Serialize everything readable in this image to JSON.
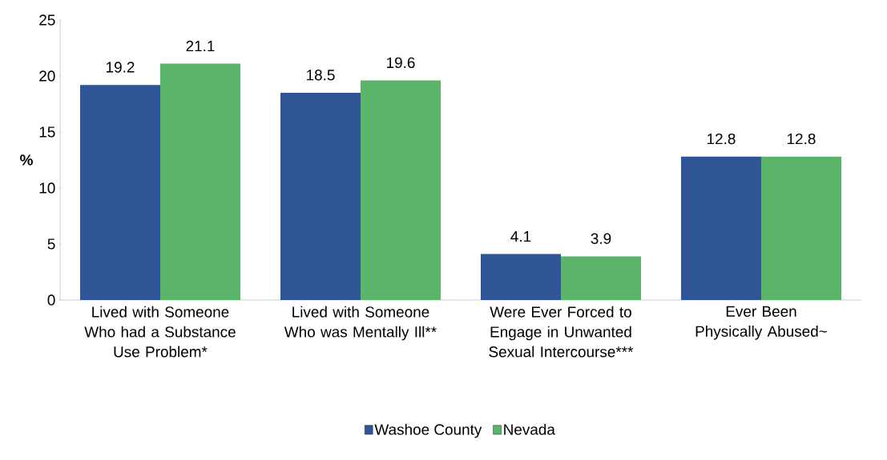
{
  "chart_data": {
    "type": "bar",
    "ylabel": "%",
    "categories": [
      "Lived with Someone Who had a Substance Use Problem*",
      "Lived with Someone Who was Mentally Ill**",
      "Were Ever Forced to Engage in Unwanted Sexual Intercourse***",
      "Ever Been Physically Abused~"
    ],
    "series": [
      {
        "name": "Washoe County",
        "color": "#2f5597",
        "values": [
          19.2,
          18.5,
          4.1,
          12.8
        ]
      },
      {
        "name": "Nevada",
        "color": "#5ab46a",
        "values": [
          21.1,
          19.6,
          3.9,
          12.8
        ]
      }
    ],
    "ylim": [
      0,
      25
    ],
    "yticks": [
      0,
      5,
      10,
      15,
      20,
      25
    ],
    "data_labels": true,
    "grid": false,
    "legend": "bottom"
  }
}
